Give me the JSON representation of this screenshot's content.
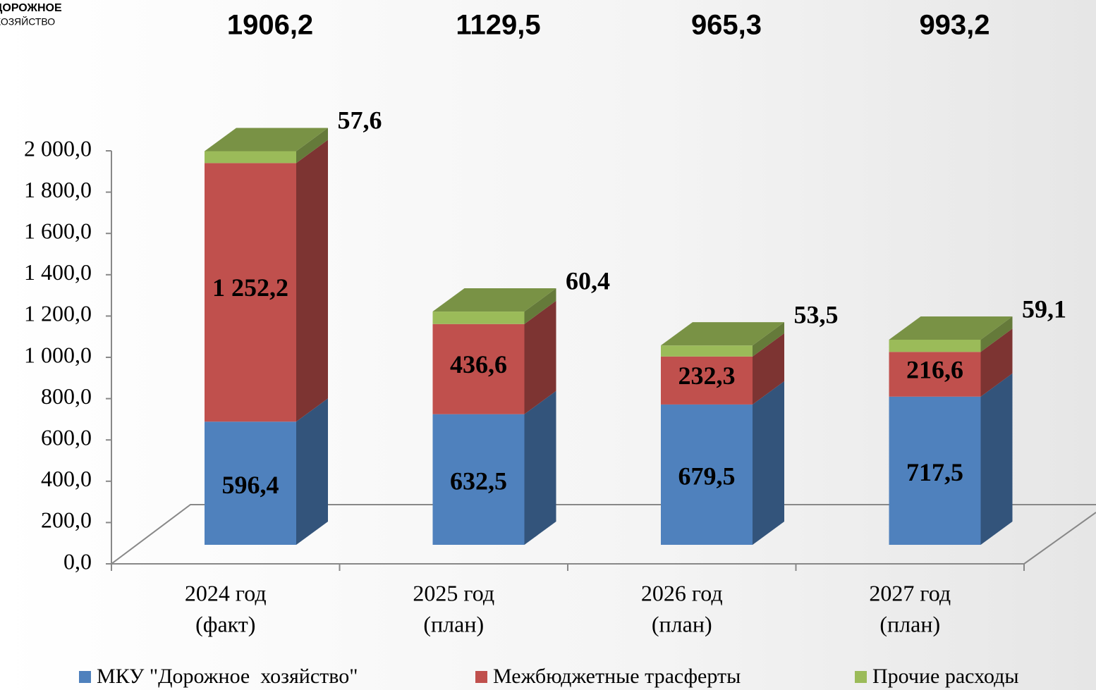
{
  "logo": [
    "ДОРОЖНОЕ",
    "ХОЗЯЙСТВО"
  ],
  "chart_data": {
    "type": "bar3d_stacked",
    "totals": {
      "values": [
        1906.2,
        1129.5,
        965.3,
        993.2
      ],
      "value_labels": [
        "1906,2",
        "1129,5",
        "965,3",
        "993,2"
      ]
    },
    "categories": [
      [
        "2024 год",
        "(факт)"
      ],
      [
        "2025 год",
        "(план)"
      ],
      [
        "2026 год",
        "(план)"
      ],
      [
        "2027 год",
        "(план)"
      ]
    ],
    "series": [
      {
        "name": "МКУ \"Дорожное  хозяйство\"",
        "color": "#4f81bd",
        "values": [
          596.4,
          632.5,
          679.5,
          717.5
        ],
        "value_labels": [
          "596,4",
          "632,5",
          "679,5",
          "717,5"
        ]
      },
      {
        "name": "Межбюджетные трасферты",
        "color": "#c0504d",
        "values": [
          1252.2,
          436.6,
          232.3,
          216.6
        ],
        "value_labels": [
          "1 252,2",
          "436,6",
          "232,3",
          "216,6"
        ]
      },
      {
        "name": "Прочие расходы",
        "color": "#9bbb59",
        "values": [
          57.6,
          60.4,
          53.5,
          59.1
        ],
        "value_labels": [
          "57,6",
          "60,4",
          "53,5",
          "59,1"
        ]
      }
    ],
    "ylim": [
      0,
      2000
    ],
    "yticks": [
      {
        "value": 0,
        "label": "0,0"
      },
      {
        "value": 200,
        "label": "200,0"
      },
      {
        "value": 400,
        "label": "400,0"
      },
      {
        "value": 600,
        "label": "600,0"
      },
      {
        "value": 800,
        "label": "800,0"
      },
      {
        "value": 1000,
        "label": "1 000,0"
      },
      {
        "value": 1200,
        "label": "1 200,0"
      },
      {
        "value": 1400,
        "label": "1 400,0"
      },
      {
        "value": 1600,
        "label": "1 600,0"
      },
      {
        "value": 1800,
        "label": "1 800,0"
      },
      {
        "value": 2000,
        "label": "2 000,0"
      }
    ],
    "legend": "bottom"
  }
}
